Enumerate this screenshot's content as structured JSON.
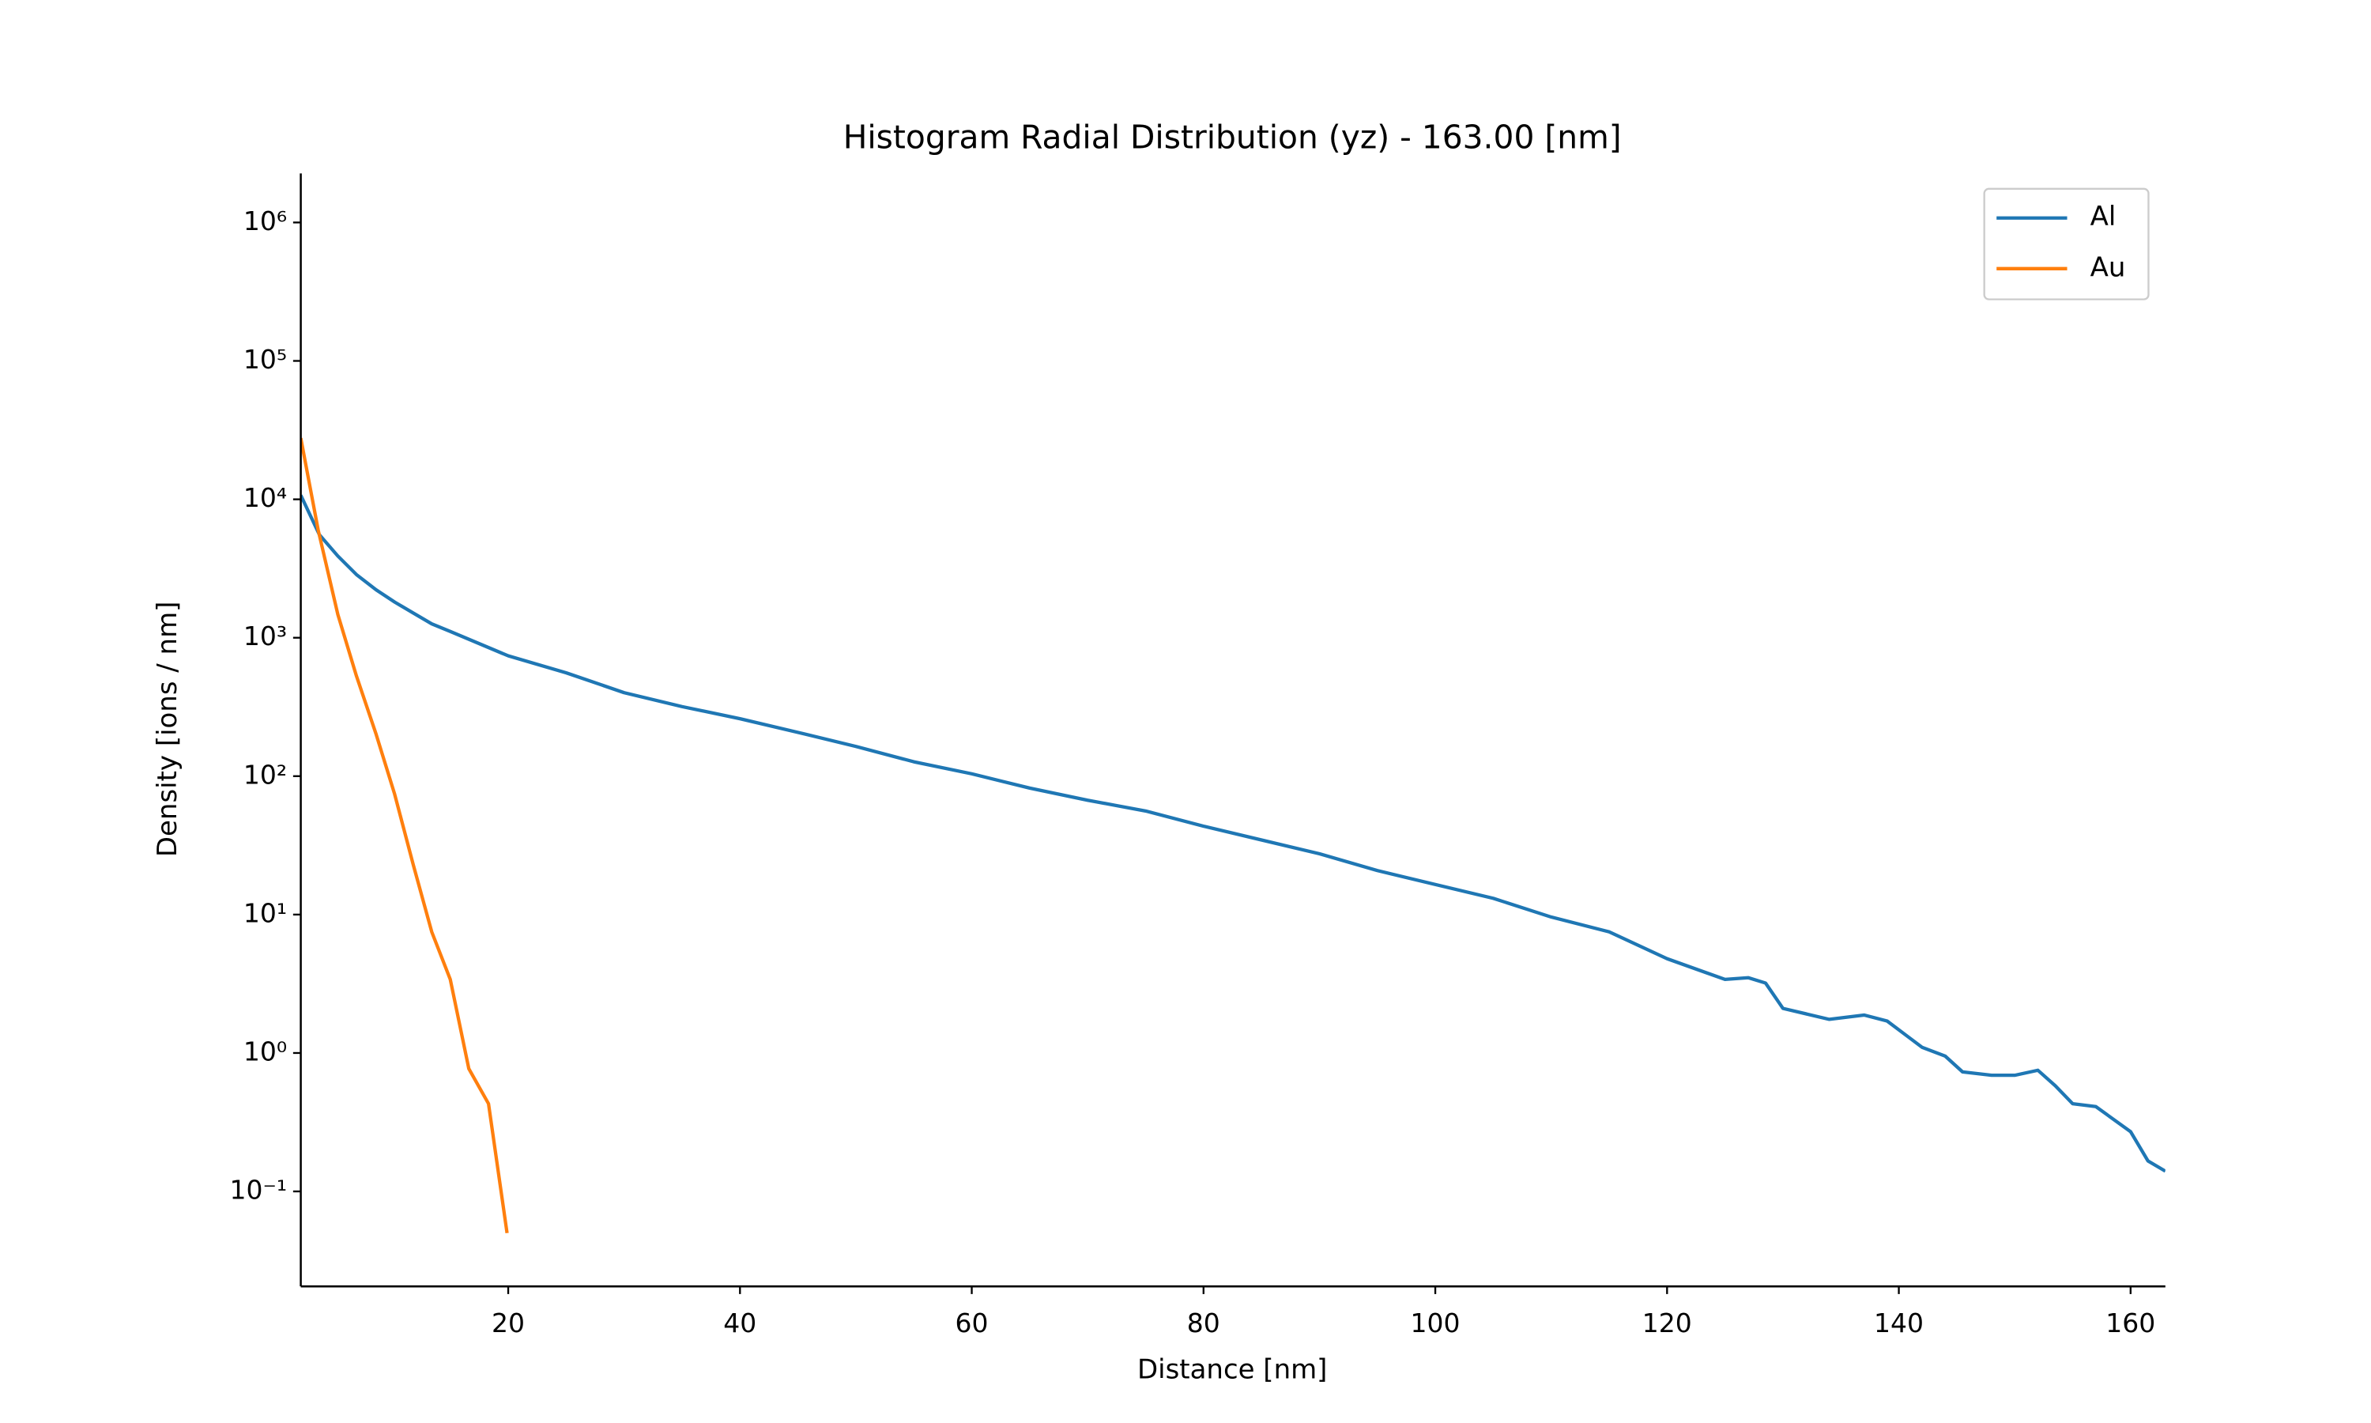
{
  "chart_data": {
    "type": "line",
    "title": "Histogram Radial Distribution (yz) - 163.00 [nm]",
    "xlabel": "Distance [nm]",
    "ylabel": "Density [ions / nm]",
    "xlim": [
      2.1,
      163
    ],
    "ylim": [
      0.0206,
      2260000
    ],
    "yscale": "log",
    "xticks": [
      20,
      40,
      60,
      80,
      100,
      120,
      140,
      160
    ],
    "yticks": [
      {
        "value": 0.1,
        "label": "10⁻¹"
      },
      {
        "value": 1,
        "label": "10⁰"
      },
      {
        "value": 10,
        "label": "10¹"
      },
      {
        "value": 100,
        "label": "10²"
      },
      {
        "value": 1000,
        "label": "10³"
      },
      {
        "value": 10000,
        "label": "10⁴"
      },
      {
        "value": 100000,
        "label": "10⁵"
      },
      {
        "value": 1000000,
        "label": "10⁶"
      }
    ],
    "legend": "upper right",
    "series": [
      {
        "name": "Al",
        "color": "#1f77b4",
        "x": [
          2.1,
          3.7,
          5.3,
          6.9,
          8.6,
          10.2,
          11.8,
          13.4,
          15.0,
          20,
          25,
          30,
          35,
          40,
          45,
          50,
          55,
          60,
          65,
          70,
          75,
          80,
          85,
          90,
          95,
          100,
          105,
          110,
          115,
          120,
          125,
          127,
          128.5,
          130,
          134,
          137,
          139,
          142,
          144,
          145.5,
          148,
          150,
          152,
          153.5,
          155,
          157,
          160,
          161.5,
          163
        ],
        "values": [
          10700,
          5560,
          3890,
          2860,
          2220,
          1810,
          1510,
          1260,
          1110,
          740,
          558,
          401,
          318,
          260,
          207,
          164,
          127,
          104,
          82,
          67,
          56,
          43.5,
          34.6,
          27.5,
          20.8,
          16.5,
          13.1,
          9.6,
          7.5,
          4.8,
          3.4,
          3.5,
          3.2,
          2.1,
          1.75,
          1.88,
          1.7,
          1.1,
          0.95,
          0.73,
          0.69,
          0.69,
          0.75,
          0.58,
          0.43,
          0.41,
          0.27,
          0.166,
          0.14
        ]
      },
      {
        "name": "Au",
        "color": "#ff7f0e",
        "x": [
          2.1,
          3.6,
          5.3,
          6.9,
          8.6,
          10.2,
          11.8,
          13.4,
          15.0,
          16.6,
          18.3,
          19.9
        ],
        "values": [
          27700,
          6000,
          1470,
          530,
          201,
          74,
          23,
          7.5,
          3.4,
          0.77,
          0.43,
          0.05
        ]
      }
    ]
  }
}
